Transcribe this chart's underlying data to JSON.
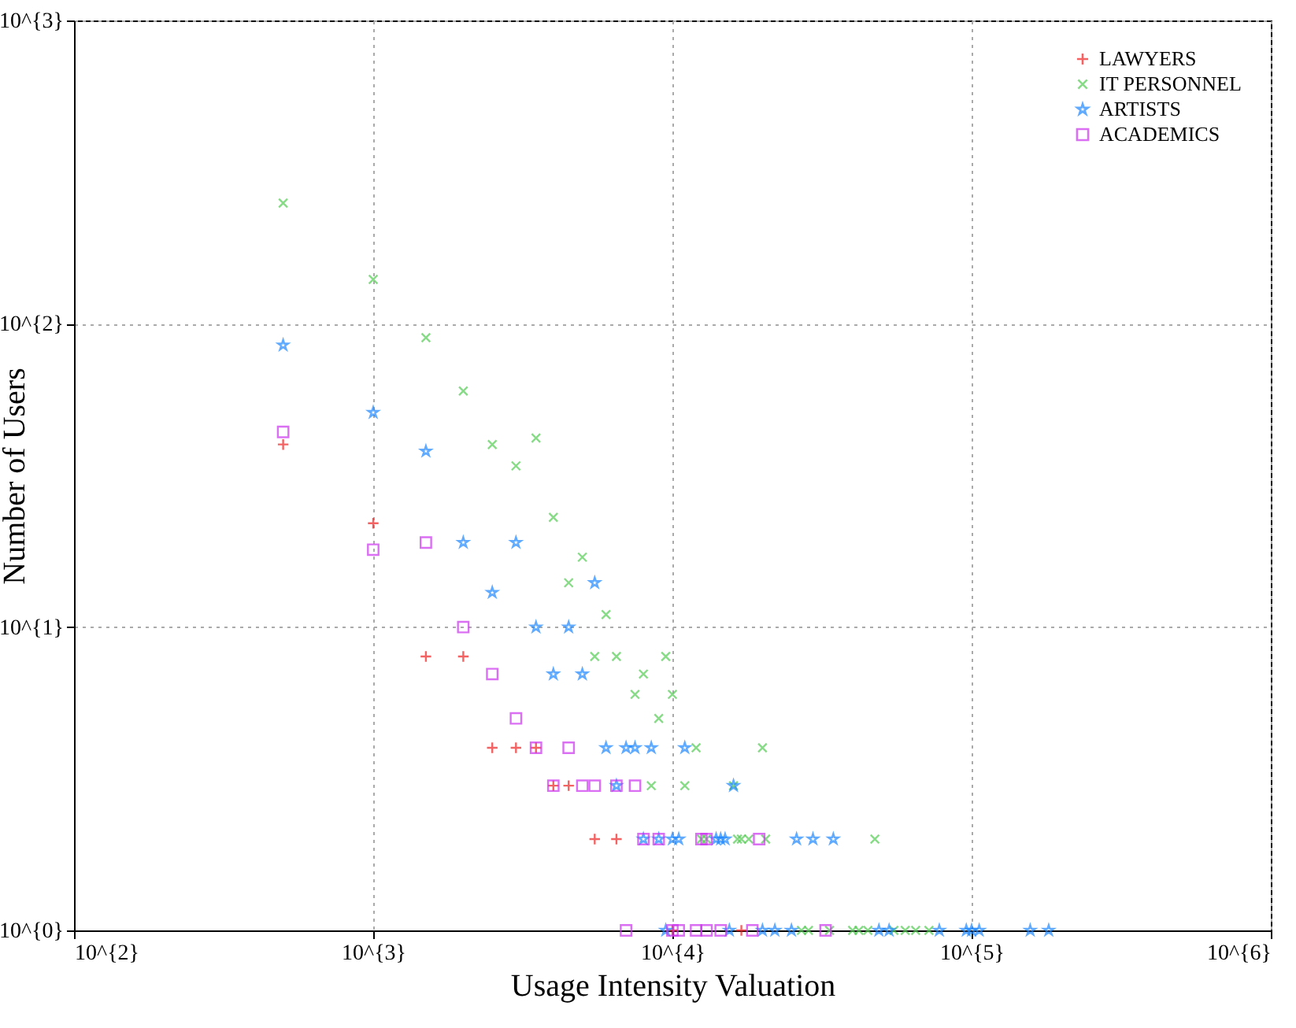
{
  "chart_data": {
    "type": "scatter",
    "xlabel": "Usage Intensity Valuation",
    "ylabel": "Number of Users",
    "log": "xy",
    "grid": true,
    "legend": "top right",
    "xlim": [
      100,
      1000000
    ],
    "ylim": [
      1,
      1000
    ],
    "xticks": [
      {
        "value": 100,
        "label": "10^{2}"
      },
      {
        "value": 1000,
        "label": "10^{3}"
      },
      {
        "value": 10000,
        "label": "10^{4}"
      },
      {
        "value": 100000,
        "label": "10^{5}"
      },
      {
        "value": 1000000,
        "label": "10^{6}"
      }
    ],
    "yticks": [
      {
        "value": 1,
        "label": "10^{0}"
      },
      {
        "value": 10,
        "label": "10^{1}"
      },
      {
        "value": 100,
        "label": "10^{2}"
      },
      {
        "value": 1000,
        "label": "10^{3}"
      }
    ],
    "series": [
      {
        "name": "LAWYERS",
        "color": "#ee2222",
        "marker": "cross",
        "x": [
          500,
          1000,
          1500,
          2000,
          2500,
          3000,
          3500,
          4000,
          4500,
          5500,
          6500,
          10000,
          17000
        ],
        "values": [
          40,
          22,
          8,
          8,
          4,
          4,
          4,
          3,
          3,
          2,
          2,
          1,
          1
        ]
      },
      {
        "name": "IT PERSONNEL",
        "color": "#55cc55",
        "marker": "x",
        "x": [
          500,
          1000,
          1500,
          2000,
          2500,
          3000,
          3500,
          4000,
          4500,
          5000,
          5500,
          6000,
          6500,
          7500,
          8000,
          8500,
          9000,
          9500,
          10000,
          11000,
          12000,
          16000,
          20000,
          12500,
          13000,
          16500,
          17000,
          18000,
          20500,
          47500,
          27000,
          28500,
          33500,
          40000,
          42000,
          45000,
          55000,
          60000,
          65000,
          72000
        ],
        "values": [
          250,
          140,
          90,
          60,
          40,
          34,
          42,
          23,
          14,
          17,
          8,
          11,
          8,
          6,
          7,
          3,
          5,
          8,
          6,
          3,
          4,
          3,
          4,
          2,
          2,
          2,
          2,
          2,
          2,
          2,
          1,
          1,
          1,
          1,
          1,
          1,
          1,
          1,
          1,
          1
        ]
      },
      {
        "name": "ARTISTS",
        "color": "#1e88ff",
        "marker": "star",
        "x": [
          500,
          1000,
          1500,
          2000,
          2500,
          3000,
          3500,
          4000,
          4500,
          5000,
          5500,
          6000,
          6500,
          7000,
          7500,
          8000,
          8500,
          9000,
          9500,
          10000,
          10500,
          11000,
          14000,
          14500,
          15000,
          15500,
          16000,
          20000,
          22000,
          25000,
          26000,
          29500,
          34500,
          49000,
          53000,
          78000,
          96000,
          100000,
          106000,
          157000,
          181000
        ],
        "values": [
          85,
          51,
          38,
          19,
          13,
          19,
          10,
          7,
          10,
          7,
          14,
          4,
          3,
          4,
          4,
          2,
          4,
          2,
          1,
          2,
          2,
          4,
          2,
          2,
          2,
          1,
          3,
          1,
          1,
          1,
          2,
          2,
          2,
          1,
          1,
          1,
          1,
          1,
          1,
          1,
          1
        ]
      },
      {
        "name": "ACADEMICS",
        "color": "#cc33ee",
        "marker": "square",
        "x": [
          500,
          1000,
          1500,
          2000,
          2500,
          3000,
          3500,
          4000,
          4500,
          5000,
          5500,
          6500,
          7000,
          7500,
          8000,
          9000,
          10000,
          10500,
          12000,
          12500,
          13000,
          13000,
          14500,
          18500,
          19500,
          32500
        ],
        "values": [
          44,
          18,
          19,
          10,
          7,
          5,
          4,
          3,
          4,
          3,
          3,
          3,
          1,
          3,
          2,
          2,
          1,
          1,
          1,
          2,
          2,
          1,
          1,
          1,
          2,
          1
        ]
      }
    ]
  }
}
